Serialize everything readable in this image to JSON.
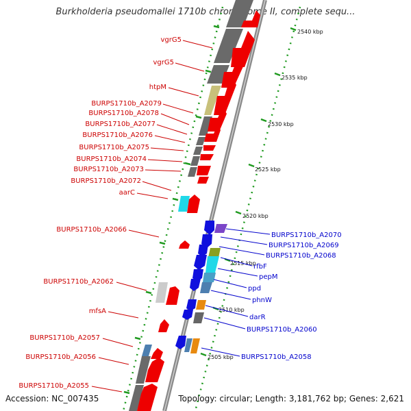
{
  "title": "Burkholderia pseudomallei 1710b chromosome II, complete sequ...",
  "footer": {
    "accession": "Accession: NC_007435",
    "stats": "Topology: circular; Length: 3,181,762 bp; Genes: 2,621"
  },
  "ruler": [
    "2540 kbp",
    "2535 kbp",
    "2530 kbp",
    "2525 kbp",
    "2520 kbp",
    "2515 kbp",
    "2510 kbp",
    "2505 kbp"
  ],
  "colors": {
    "forward_cds": "#ee0000",
    "reverse_cds": "#1010dd",
    "backbone": "#888888",
    "gene_block": "#666666",
    "ruler_dots": "#1f9a1f",
    "label_red": "#cc0000",
    "label_blue": "#0000cc"
  },
  "labels_forward": [
    "vgrG5",
    "vgrG5",
    "htpM",
    "BURPS1710b_A2079",
    "BURPS1710b_A2078",
    "BURPS1710b_A2077",
    "BURPS1710b_A2076",
    "BURPS1710b_A2075",
    "BURPS1710b_A2074",
    "BURPS1710b_A2073",
    "BURPS1710b_A2072",
    "aarC",
    "BURPS1710b_A2066",
    "BURPS1710b_A2062",
    "mfsA",
    "BURPS1710b_A2057",
    "BURPS1710b_A2056",
    "BURPS1710b_A2055"
  ],
  "labels_reverse": [
    "BURPS1710b_A2070",
    "BURPS1710b_A2069",
    "BURPS1710b_A2068",
    "rfbF",
    "pepM",
    "ppd",
    "phnW",
    "darR",
    "BURPS1710b_A2060",
    "BURPS1710b_A2058"
  ]
}
